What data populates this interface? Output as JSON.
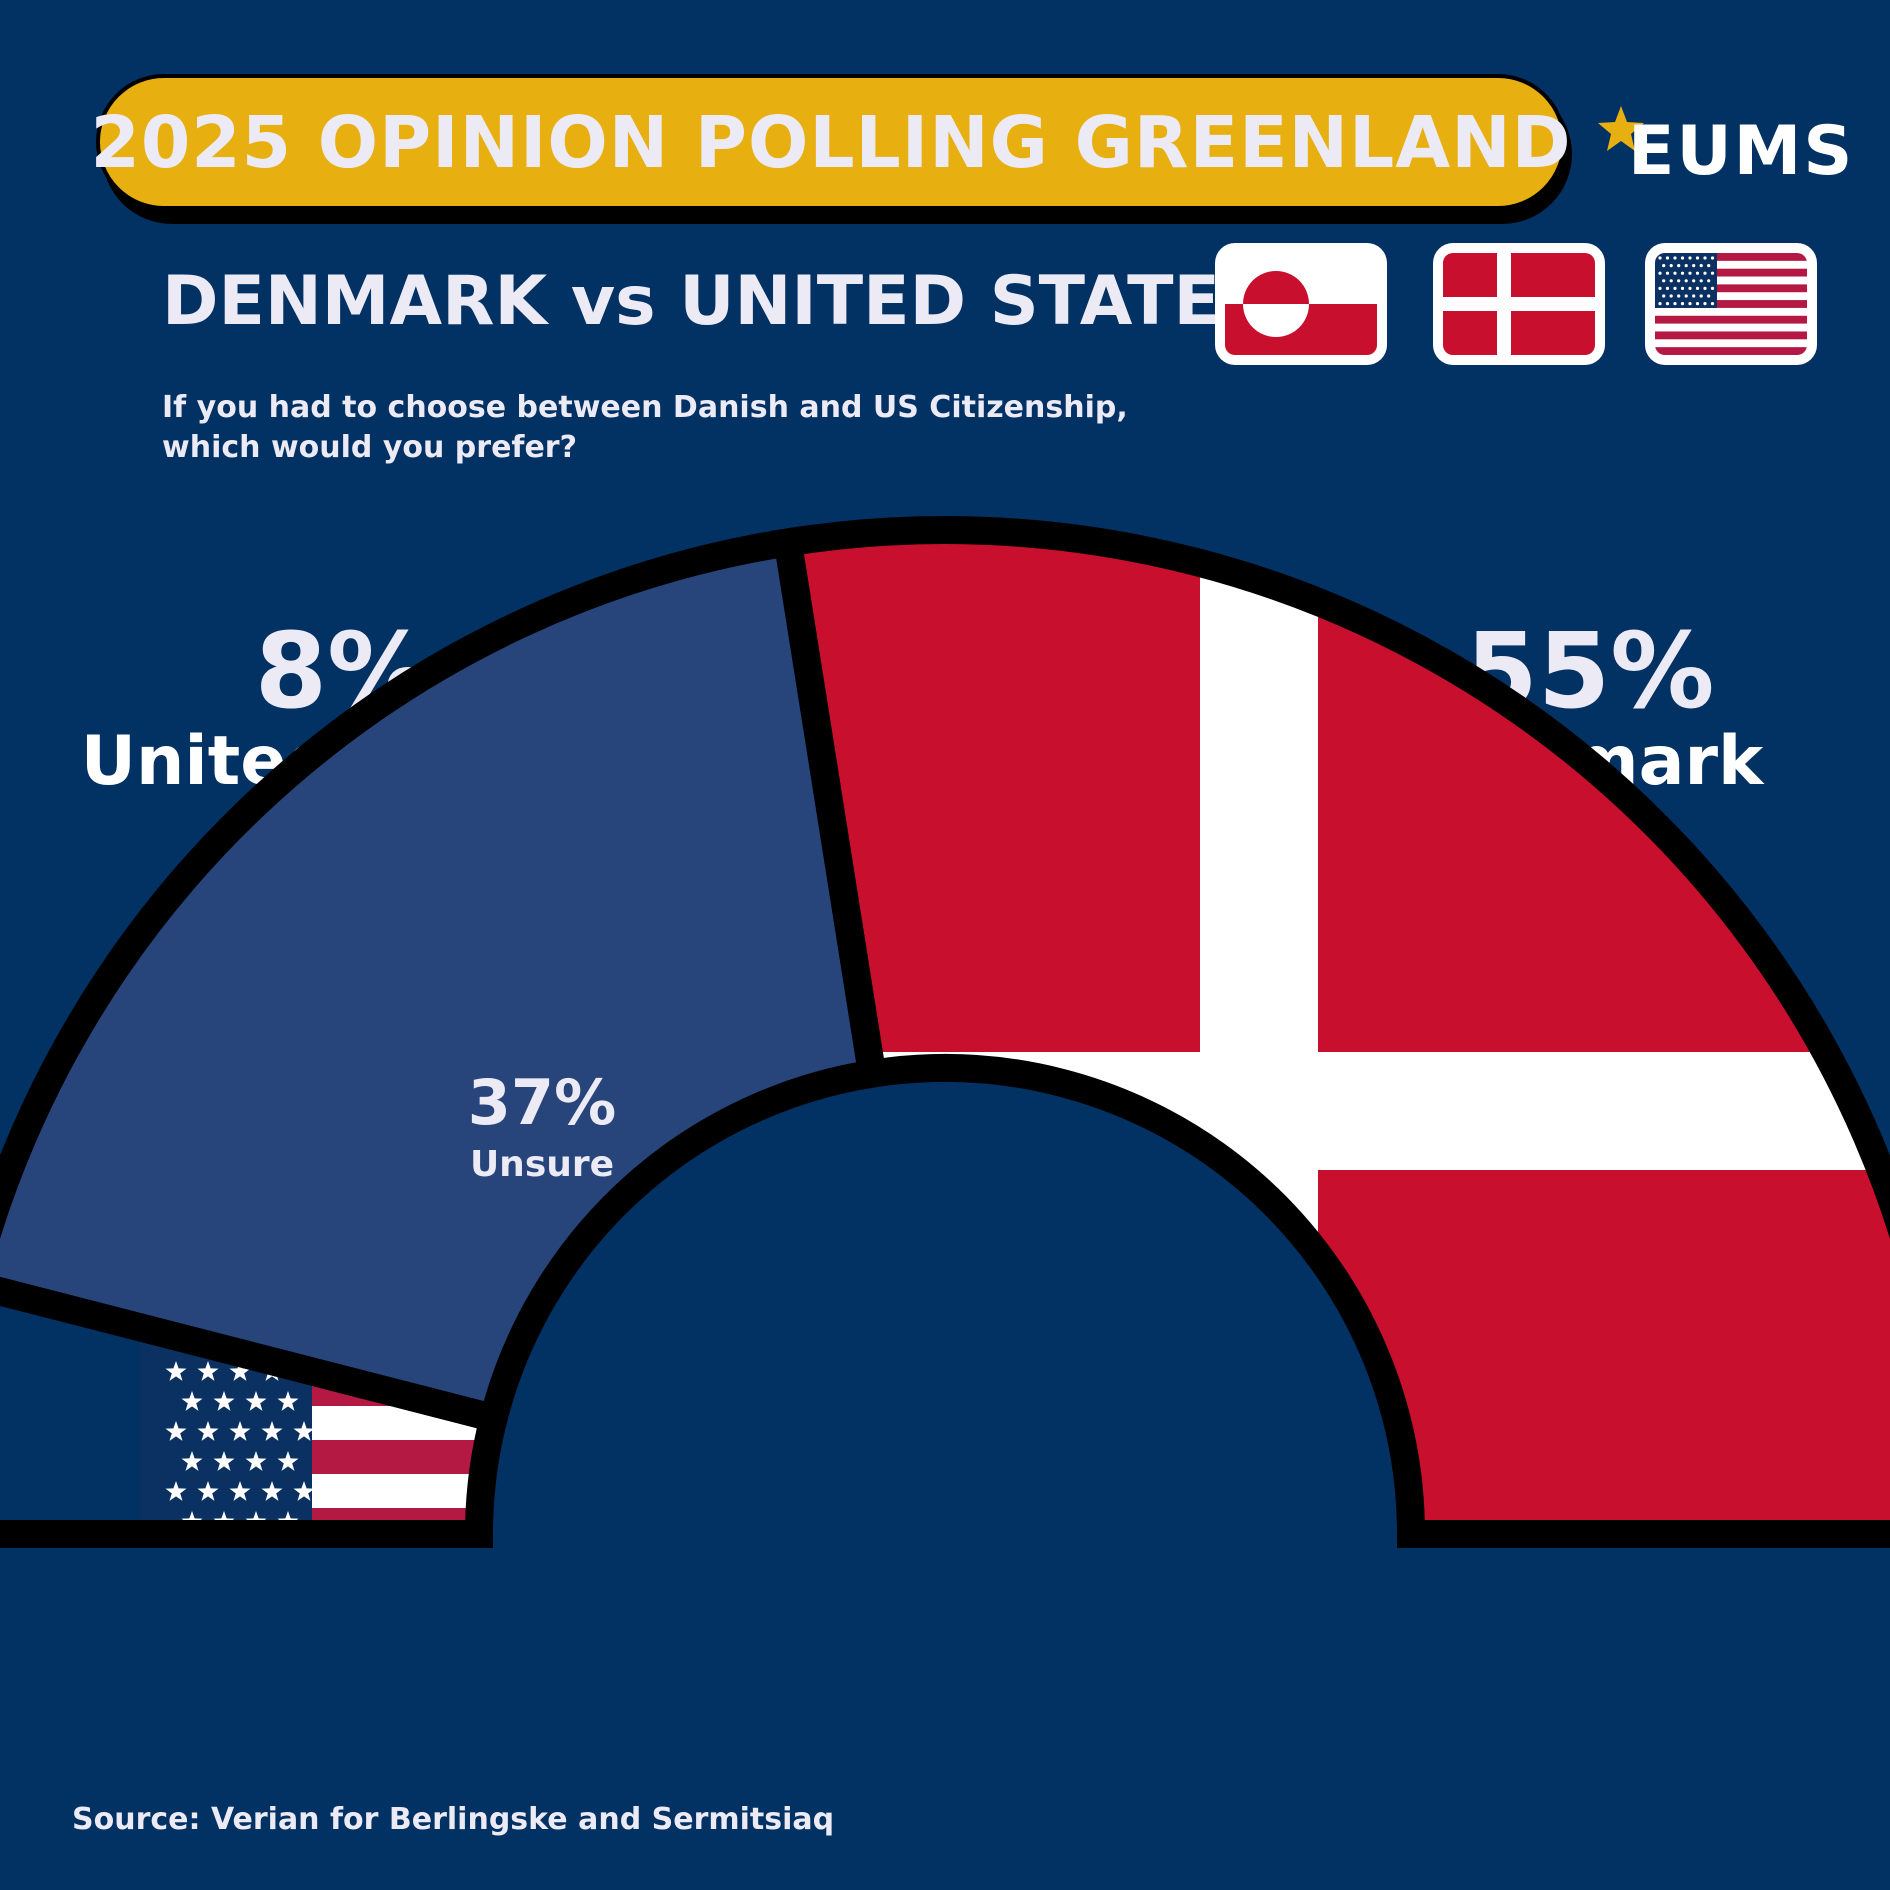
{
  "header": {
    "title": "2025 OPINION POLLING GREENLAND",
    "logo_text": "EUMS",
    "subtitle": "DENMARK vs UNITED STATES",
    "question_line1": "If you had to choose between Danish and US Citizenship,",
    "question_line2": "which would you prefer?"
  },
  "icons": [
    "greenland-flag-icon",
    "denmark-flag-icon",
    "us-flag-icon",
    "star-icon"
  ],
  "colors": {
    "background": "#023163",
    "title_pill": "#e8af10",
    "unsure": "#27457a",
    "danish_red": "#c8102e",
    "us_blue": "#0a3161",
    "us_red": "#b31942",
    "text": "#eceaf4"
  },
  "chart_data": {
    "type": "pie",
    "subtype": "semicircle",
    "categories": [
      "United States",
      "Unsure",
      "Denmark"
    ],
    "values": [
      8,
      37,
      55
    ],
    "display": {
      "us_pct": "8%",
      "us_label": "United States",
      "unsure_pct": "37%",
      "unsure_label": "Unsure",
      "dk_pct": "55%",
      "dk_label": "Denmark"
    }
  },
  "footer": {
    "source": "Source: Verian for Berlingske and Sermitsiaq"
  }
}
